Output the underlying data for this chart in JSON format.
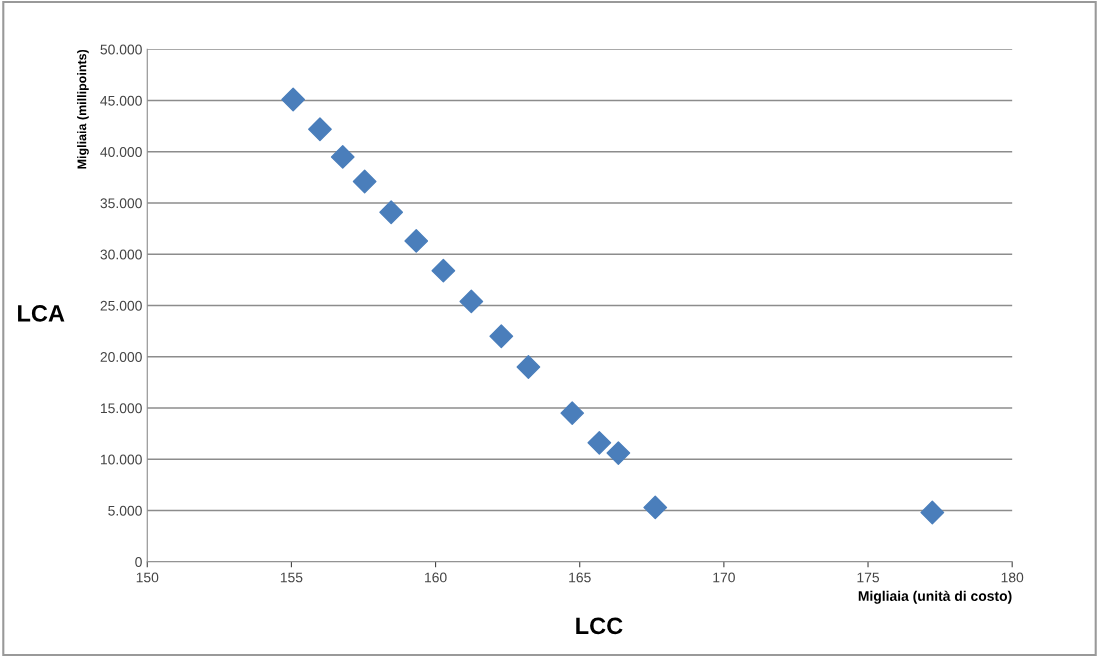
{
  "chart_data": {
    "type": "scatter",
    "xlabel": "Migliaia (unità di costo)",
    "ylabel": "Migliaia (millipoints)",
    "annotations": [
      "LCA",
      "LCC"
    ],
    "x": [
      155.06,
      155.99,
      156.78,
      157.54,
      158.46,
      159.33,
      160.27,
      161.24,
      162.28,
      163.22,
      164.74,
      165.68,
      166.34,
      167.62,
      177.23
    ],
    "series": [
      {
        "color": "#4a7ebb",
        "values": [
          45100,
          42200,
          39500,
          37100,
          34100,
          31300,
          28400,
          25400,
          22000,
          19000,
          14500,
          11600,
          10600,
          5300,
          4800
        ]
      }
    ],
    "xlim": [
      150,
      180
    ],
    "xticks": [
      150,
      155,
      160,
      165,
      170,
      175,
      180
    ],
    "ylim": [
      0,
      50000
    ],
    "yticks": [
      {
        "value": 0,
        "label": "0"
      },
      {
        "value": 5000,
        "label": "5.000"
      },
      {
        "value": 10000,
        "label": "10.000"
      },
      {
        "value": 15000,
        "label": "15.000"
      },
      {
        "value": 20000,
        "label": "20.000"
      },
      {
        "value": 25000,
        "label": "25.000"
      },
      {
        "value": 30000,
        "label": "30.000"
      },
      {
        "value": 35000,
        "label": "35.000"
      },
      {
        "value": 40000,
        "label": "40.000"
      },
      {
        "value": 45000,
        "label": "45.000"
      },
      {
        "value": 50000,
        "label": "50.000"
      }
    ],
    "grid": "y",
    "marker": "diamond",
    "legend": false
  }
}
